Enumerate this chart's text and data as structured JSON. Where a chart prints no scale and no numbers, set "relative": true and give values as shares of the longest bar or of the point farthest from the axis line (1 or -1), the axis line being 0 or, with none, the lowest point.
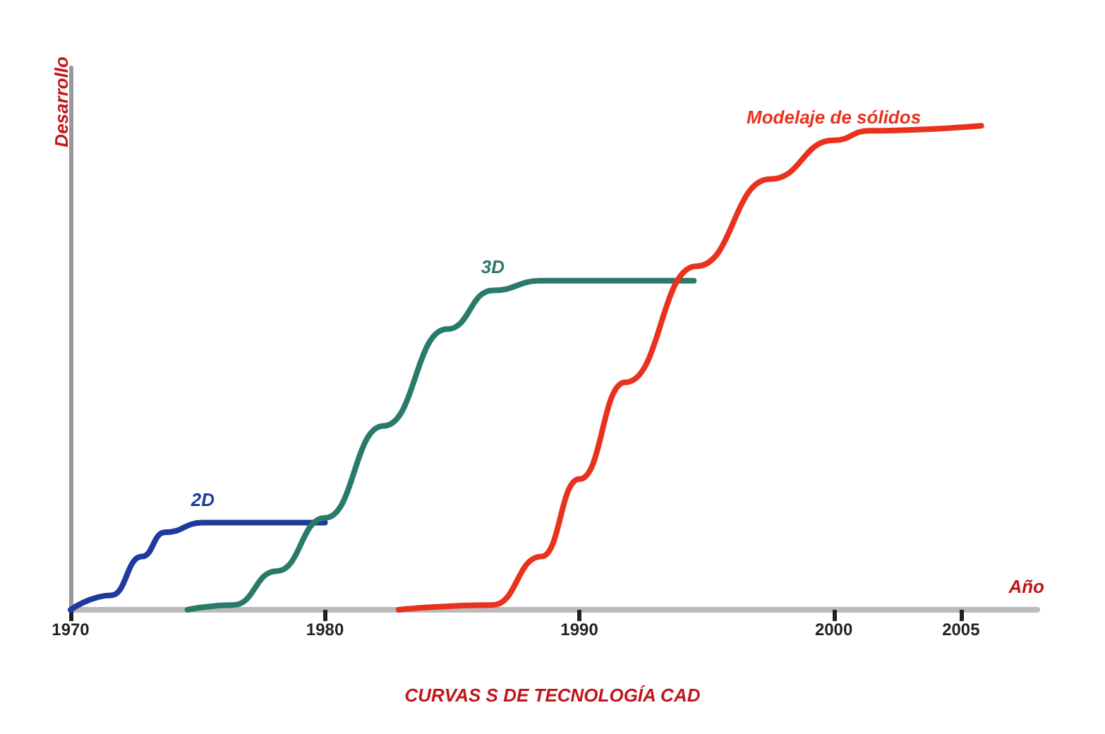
{
  "chart_data": {
    "type": "line",
    "title": "CURVAS S DE TECNOLOGÍA CAD",
    "xlabel": "Año",
    "ylabel": "Desarrollo",
    "relative": true,
    "xlim": [
      1970,
      2008
    ],
    "xticks": [
      1970,
      1980,
      1990,
      2000,
      2005
    ],
    "grid": false,
    "legend": false,
    "marker": "none",
    "line_style": "solid",
    "series": [
      {
        "name": "2D",
        "color": "#1f3a9e",
        "x": [
          1970,
          1971.6,
          1972.8,
          1973.7,
          1975.2,
          1980
        ],
        "values": [
          0,
          0.03,
          0.11,
          0.16,
          0.18,
          0.18
        ]
      },
      {
        "name": "3D",
        "color": "#2a7a6a",
        "x": [
          1974.6,
          1976.4,
          1978.1,
          1980,
          1982.3,
          1984.8,
          1986.6,
          1988.5,
          1994.5
        ],
        "values": [
          0,
          0.01,
          0.08,
          0.19,
          0.38,
          0.58,
          0.66,
          0.68,
          0.68
        ]
      },
      {
        "name": "Modelaje de sólidos",
        "color": "#e8321e",
        "x": [
          1982.9,
          1986.6,
          1988.5,
          1990,
          1991.8,
          1994.6,
          1997.5,
          2000,
          2001.4,
          2005.8
        ],
        "values": [
          0,
          0.01,
          0.11,
          0.27,
          0.47,
          0.71,
          0.89,
          0.97,
          0.99,
          1.0
        ]
      }
    ]
  }
}
